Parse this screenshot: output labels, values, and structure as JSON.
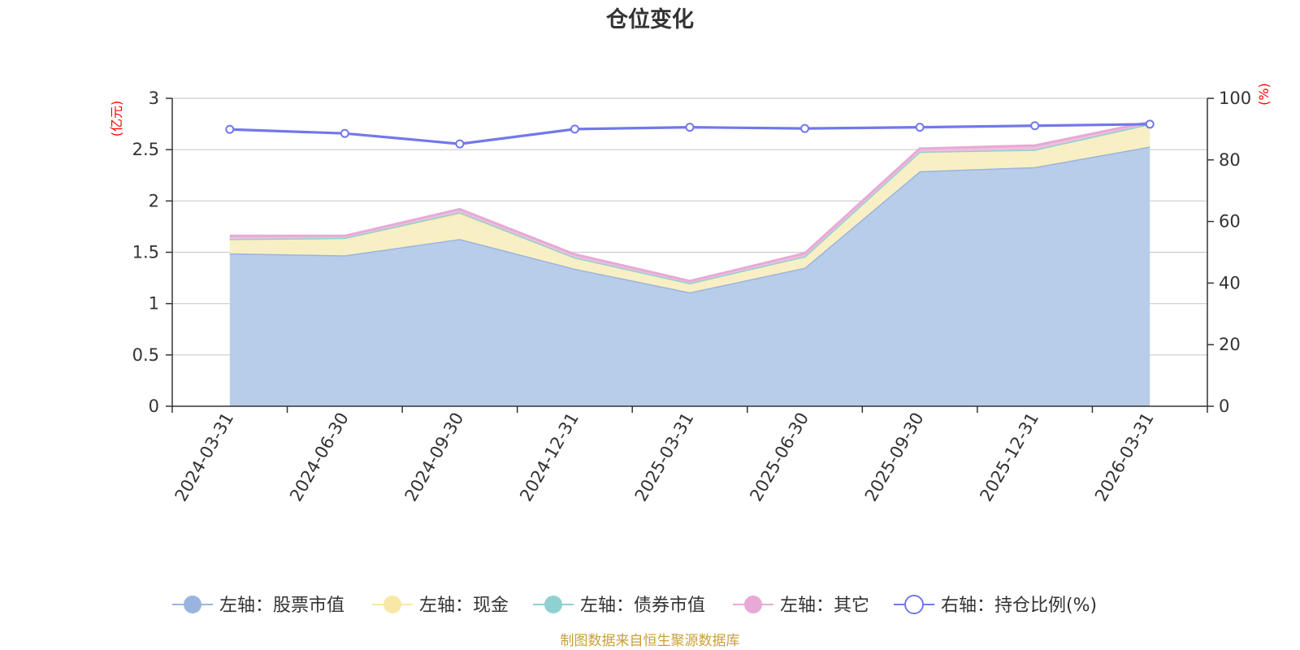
{
  "chart_data": {
    "type": "area",
    "title": "仓位变化",
    "categories": [
      "2024-03-31",
      "2024-06-30",
      "2024-09-30",
      "2024-12-31",
      "2025-03-31",
      "2025-06-30",
      "2025-09-30",
      "2025-12-31",
      "2026-03-31"
    ],
    "left_axis": {
      "unit": "(亿元)",
      "ylim": [
        0,
        3
      ],
      "ticks": [
        "0",
        "0.5",
        "1",
        "1.5",
        "2",
        "2.5",
        "3"
      ],
      "tick_values": [
        0,
        0.5,
        1,
        1.5,
        2,
        2.5,
        3
      ]
    },
    "right_axis": {
      "unit": "(%)",
      "ylim": [
        0,
        100
      ],
      "ticks": [
        "0",
        "20",
        "40",
        "60",
        "80",
        "100"
      ],
      "tick_values": [
        0,
        20,
        40,
        60,
        80,
        100
      ]
    },
    "series": [
      {
        "name": "左轴：股票市值",
        "axis": "left",
        "kind": "stacked-area",
        "color": "#9ab4df",
        "fill": "#b8cdea",
        "values": [
          1.49,
          1.47,
          1.63,
          1.34,
          1.11,
          1.35,
          2.29,
          2.33,
          2.53
        ]
      },
      {
        "name": "左轴：现金",
        "axis": "left",
        "kind": "stacked-area",
        "color": "#f8e8a8",
        "fill": "#f9efc4",
        "values": [
          0.14,
          0.17,
          0.25,
          0.11,
          0.09,
          0.11,
          0.19,
          0.17,
          0.22
        ]
      },
      {
        "name": "左轴：债券市值",
        "axis": "left",
        "kind": "stacked-area",
        "color": "#8fd1d0",
        "fill": "#a3d9d6",
        "values": [
          0.0,
          0.0,
          0.01,
          0.0,
          0.0,
          0.0,
          0.0,
          0.0,
          0.0
        ]
      },
      {
        "name": "左轴：其它",
        "axis": "left",
        "kind": "stacked-area",
        "color": "#e8a9d6",
        "fill": "#ecc0de",
        "values": [
          0.03,
          0.02,
          0.03,
          0.03,
          0.02,
          0.03,
          0.03,
          0.04,
          0.02
        ]
      },
      {
        "name": "右轴：持仓比例(%)",
        "axis": "right",
        "kind": "line",
        "color": "#7278ea",
        "values": [
          89.9,
          88.6,
          85.2,
          90.0,
          90.6,
          90.2,
          90.6,
          91.1,
          91.6
        ]
      }
    ],
    "legend_position": "bottom",
    "grid": true
  },
  "footer": {
    "source": "制图数据来自恒生聚源数据库"
  }
}
